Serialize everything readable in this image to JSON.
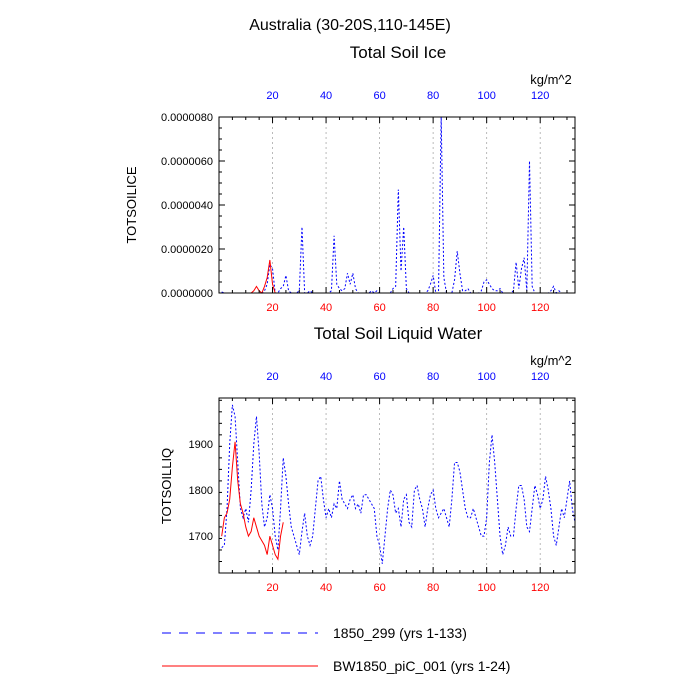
{
  "header": {
    "region_title": "Australia (30-20S,110-145E)"
  },
  "colors": {
    "series_a": "#0000ff",
    "series_b": "#ff0000",
    "axis": "#000000",
    "grid": "#aaaaaa"
  },
  "legend": [
    {
      "label": "1850_299 (yrs 1-133)",
      "color": "#0000ff",
      "style": "dashed"
    },
    {
      "label": "BW1850_piC_001 (yrs 1-24)",
      "color": "#ff0000",
      "style": "solid"
    }
  ],
  "chart_data": [
    {
      "type": "line",
      "title": "Total Soil Ice",
      "ylabel": "TOTSOILICE",
      "units": "kg/m^2",
      "xlim": [
        0,
        133
      ],
      "ylim": [
        0,
        8e-06
      ],
      "xticks": [
        20,
        40,
        60,
        80,
        100,
        120
      ],
      "xtick_labels": [
        "20",
        "40",
        "60",
        "80",
        "100",
        "120"
      ],
      "yticks": [
        0,
        2e-06,
        4e-06,
        6e-06,
        8e-06
      ],
      "ytick_labels": [
        "0.0000000",
        "0.0000020",
        "0.0000040",
        "0.0000060",
        "0.0000080"
      ],
      "series": [
        {
          "name": "1850_299 (yrs 1-133)",
          "color": "#0000ff",
          "dash": "dashed",
          "x_start": 1,
          "values": [
            5e-08,
            0,
            0,
            0,
            0,
            0,
            0,
            0,
            0,
            0,
            0,
            0,
            0,
            0,
            0,
            0,
            1e-07,
            4e-07,
            1.3e-06,
            1.1e-06,
            0,
            0,
            2e-07,
            3e-07,
            8e-07,
            1e-07,
            0,
            0,
            0,
            1e-07,
            3e-06,
            0,
            0,
            1e-07,
            0,
            0,
            0,
            0,
            0,
            0,
            0,
            1e-07,
            2.6e-06,
            4e-07,
            2e-07,
            1e-07,
            2e-07,
            9e-07,
            4e-07,
            9e-07,
            2e-07,
            0,
            0,
            0,
            0,
            0,
            1e-07,
            0,
            1e-07,
            0,
            0,
            0,
            0,
            0,
            2e-07,
            3e-07,
            4.7e-06,
            1e-06,
            3e-06,
            2e-07,
            0,
            0,
            0,
            0,
            0,
            0,
            0,
            1e-07,
            4e-07,
            8e-07,
            0,
            0,
            8e-06,
            7e-07,
            0,
            0,
            0,
            6e-07,
            1.9e-06,
            9e-07,
            1e-07,
            1e-07,
            2e-07,
            0,
            0,
            0,
            0,
            1e-07,
            5e-07,
            6e-07,
            4e-07,
            2e-07,
            1e-07,
            1e-07,
            2e-07,
            0,
            0,
            0,
            0,
            1e-07,
            1.4e-06,
            2e-07,
            1.1e-06,
            1.6e-06,
            1e-07,
            6e-06,
            3e-07,
            0,
            0,
            0,
            0,
            0,
            0,
            1e-07,
            3e-07,
            0,
            1e-07,
            0,
            0,
            0,
            0,
            0,
            0
          ]
        },
        {
          "name": "BW1850_piC_001 (yrs 1-24)",
          "color": "#ff0000",
          "dash": "solid",
          "x_start": 1,
          "values": [
            0,
            0,
            0,
            0,
            0,
            0,
            0,
            0,
            0,
            0,
            0,
            0,
            1e-07,
            3e-07,
            1e-07,
            0,
            3e-07,
            7e-07,
            1.5e-06,
            4e-07,
            0,
            0,
            0,
            0
          ]
        }
      ]
    },
    {
      "type": "line",
      "title": "Total Soil Liquid Water",
      "ylabel": "TOTSOILLIQ",
      "units": "kg/m^2",
      "xlim": [
        0,
        133
      ],
      "ylim": [
        1620,
        2000
      ],
      "xticks": [
        20,
        40,
        60,
        80,
        100,
        120
      ],
      "xtick_labels": [
        "20",
        "40",
        "60",
        "80",
        "100",
        "120"
      ],
      "yticks": [
        1700,
        1800,
        1900
      ],
      "ytick_labels": [
        "1700",
        "1800",
        "1900"
      ],
      "series": [
        {
          "name": "1850_299 (yrs 1-133)",
          "color": "#0000ff",
          "dash": "dashed",
          "x_start": 1,
          "values": [
            1675,
            1680,
            1760,
            1900,
            1985,
            1960,
            1860,
            1760,
            1740,
            1760,
            1730,
            1800,
            1900,
            1960,
            1880,
            1770,
            1720,
            1740,
            1790,
            1760,
            1700,
            1670,
            1760,
            1870,
            1830,
            1770,
            1720,
            1700,
            1680,
            1660,
            1710,
            1750,
            1700,
            1680,
            1700,
            1760,
            1820,
            1830,
            1780,
            1740,
            1760,
            1740,
            1770,
            1760,
            1820,
            1780,
            1770,
            1760,
            1780,
            1790,
            1760,
            1770,
            1750,
            1790,
            1790,
            1780,
            1770,
            1760,
            1700,
            1680,
            1640,
            1700,
            1760,
            1800,
            1790,
            1750,
            1760,
            1720,
            1780,
            1790,
            1730,
            1720,
            1800,
            1810,
            1780,
            1760,
            1720,
            1760,
            1790,
            1800,
            1760,
            1740,
            1750,
            1760,
            1740,
            1720,
            1780,
            1860,
            1860,
            1840,
            1800,
            1760,
            1740,
            1740,
            1760,
            1740,
            1720,
            1700,
            1700,
            1740,
            1860,
            1920,
            1860,
            1780,
            1700,
            1660,
            1680,
            1720,
            1700,
            1700,
            1760,
            1810,
            1810,
            1780,
            1720,
            1710,
            1760,
            1810,
            1790,
            1760,
            1780,
            1830,
            1800,
            1760,
            1700,
            1680,
            1720,
            1760,
            1740,
            1780,
            1820,
            1760,
            1730
          ]
        },
        {
          "name": "BW1850_piC_001 (yrs 1-24)",
          "color": "#ff0000",
          "dash": "solid",
          "x_start": 1,
          "values": [
            1700,
            1740,
            1750,
            1780,
            1850,
            1905,
            1820,
            1770,
            1750,
            1720,
            1700,
            1710,
            1740,
            1720,
            1700,
            1690,
            1680,
            1660,
            1700,
            1680,
            1660,
            1650,
            1700,
            1730
          ]
        }
      ]
    }
  ]
}
